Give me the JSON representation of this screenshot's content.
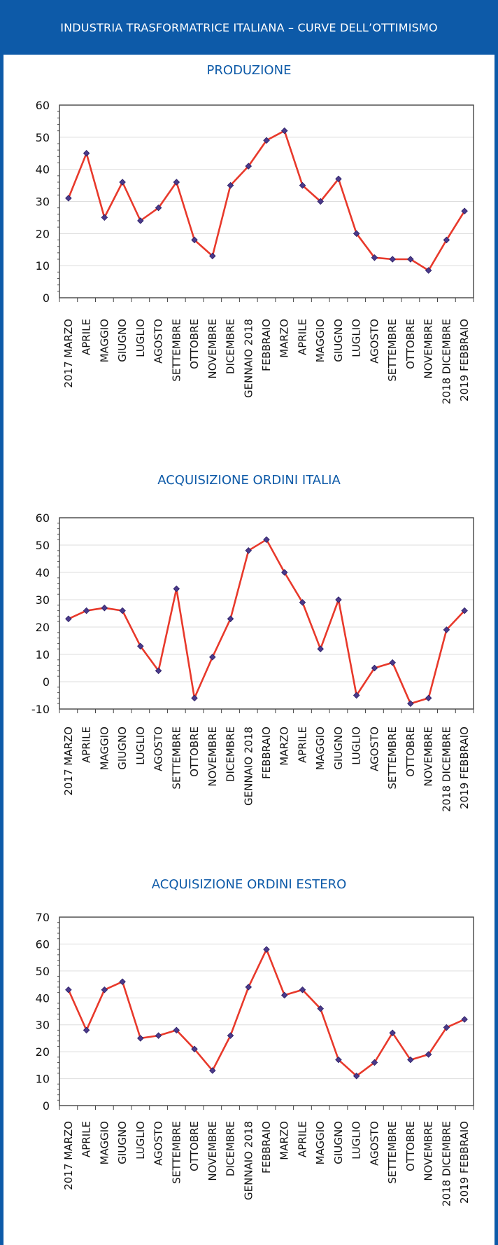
{
  "header": {
    "title": "INDUSTRIA TRASFORMATRICE ITALIANA – CURVE DELL’OTTIMISMO"
  },
  "colors": {
    "brand": "#0d5aa8",
    "line": "#e8392b",
    "marker": "#4b3a8a"
  },
  "chart_data": [
    {
      "type": "line",
      "title": "PRODUZIONE",
      "categories": [
        "2017 MARZO",
        "APRILE",
        "MAGGIO",
        "GIUGNO",
        "LUGLIO",
        "AGOSTO",
        "SETTEMBRE",
        "OTTOBRE",
        "NOVEMBRE",
        "DICEMBRE",
        "GENNAIO 2018",
        "FEBBRAIO",
        "MARZO",
        "APRILE",
        "MAGGIO",
        "GIUGNO",
        "LUGLIO",
        "AGOSTO",
        "SETTEMBRE",
        "OTTOBRE",
        "NOVEMBRE",
        "2018 DICEMBRE",
        "2019 FEBBRAIO"
      ],
      "values": [
        31,
        45,
        25,
        36,
        24,
        28,
        36,
        18,
        13,
        35,
        41,
        49,
        52,
        35,
        30,
        37,
        20,
        12.5,
        12,
        12,
        8.5,
        18,
        27
      ],
      "ylim": [
        0,
        60
      ],
      "yticks": [
        0,
        10,
        20,
        30,
        40,
        50,
        60
      ],
      "grid": true
    },
    {
      "type": "line",
      "title": "ACQUISIZIONE ORDINI ITALIA",
      "categories": [
        "2017 MARZO",
        "APRILE",
        "MAGGIO",
        "GIUGNO",
        "LUGLIO",
        "AGOSTO",
        "SETTEMBRE",
        "OTTOBRE",
        "NOVEMBRE",
        "DICEMBRE",
        "GENNAIO 2018",
        "FEBBRAIO",
        "MARZO",
        "APRILE",
        "MAGGIO",
        "GIUGNO",
        "LUGLIO",
        "AGOSTO",
        "SETTEMBRE",
        "OTTOBRE",
        "NOVEMBRE",
        "2018 DICEMBRE",
        "2019 FEBBRAIO"
      ],
      "values": [
        23,
        26,
        27,
        26,
        13,
        4,
        34,
        -6,
        9,
        23,
        48,
        52,
        40,
        29,
        12,
        30,
        -5,
        5,
        7,
        -8,
        -6,
        19,
        26
      ],
      "ylim": [
        -10,
        60
      ],
      "yticks": [
        -10,
        0,
        10,
        20,
        30,
        40,
        50,
        60
      ],
      "grid": true
    },
    {
      "type": "line",
      "title": "ACQUISIZIONE ORDINI ESTERO",
      "categories": [
        "2017 MARZO",
        "APRILE",
        "MAGGIO",
        "GIUGNO",
        "LUGLIO",
        "AGOSTO",
        "SETTEMBRE",
        "OTTOBRE",
        "NOVEMBRE",
        "DICEMBRE",
        "GENNAIO 2018",
        "FEBBRAIO",
        "MARZO",
        "APRILE",
        "MAGGIO",
        "GIUGNO",
        "LUGLIO",
        "AGOSTO",
        "SETTEMBRE",
        "OTTOBRE",
        "NOVEMBRE",
        "2018 DICEMBRE",
        "2019 FEBBRAIO"
      ],
      "values": [
        43,
        28,
        43,
        46,
        25,
        26,
        28,
        21,
        13,
        26,
        44,
        58,
        41,
        43,
        36,
        17,
        11,
        16,
        27,
        17,
        19,
        29,
        32
      ],
      "ylim": [
        0,
        70
      ],
      "yticks": [
        0,
        10,
        20,
        30,
        40,
        50,
        60,
        70
      ],
      "grid": true
    }
  ]
}
